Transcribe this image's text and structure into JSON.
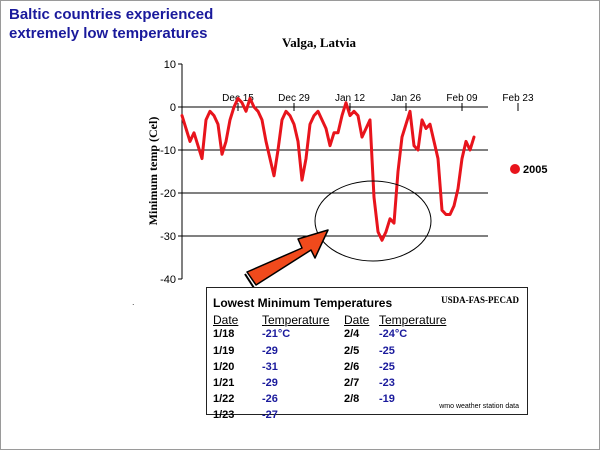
{
  "slide": {
    "title_line1": "Baltic countries experienced",
    "title_line2": "extremely low temperatures"
  },
  "colors": {
    "title": "#1a1a9c",
    "series": "#e8141c",
    "arrow": "#f04a1c",
    "table_values": "#1a1a9c"
  },
  "chart_data": {
    "type": "line",
    "title": "Valga, Latvia",
    "ylabel": "Minimum temp (Cel)",
    "xlabel": "",
    "ylim": [
      -40,
      10
    ],
    "yticks": [
      10,
      0,
      -10,
      -20,
      -30,
      -40
    ],
    "xticks": [
      "Dec 15",
      "Dec 29",
      "Jan 12",
      "Jan 26",
      "Feb 09",
      "Feb 23"
    ],
    "grid": "horizontal",
    "legend": "right",
    "series": [
      {
        "name": "2005",
        "x": [
          "Dec 01",
          "Dec 02",
          "Dec 03",
          "Dec 04",
          "Dec 05",
          "Dec 06",
          "Dec 07",
          "Dec 08",
          "Dec 09",
          "Dec 10",
          "Dec 11",
          "Dec 12",
          "Dec 13",
          "Dec 14",
          "Dec 15",
          "Dec 16",
          "Dec 17",
          "Dec 18",
          "Dec 19",
          "Dec 20",
          "Dec 21",
          "Dec 22",
          "Dec 23",
          "Dec 24",
          "Dec 25",
          "Dec 26",
          "Dec 27",
          "Dec 28",
          "Dec 29",
          "Dec 30",
          "Dec 31",
          "Jan 01",
          "Jan 02",
          "Jan 03",
          "Jan 04",
          "Jan 05",
          "Jan 06",
          "Jan 07",
          "Jan 08",
          "Jan 09",
          "Jan 10",
          "Jan 11",
          "Jan 12",
          "Jan 13",
          "Jan 14",
          "Jan 15",
          "Jan 16",
          "Jan 17",
          "Jan 18",
          "Jan 19",
          "Jan 20",
          "Jan 21",
          "Jan 22",
          "Jan 23",
          "Jan 24",
          "Jan 25",
          "Jan 26",
          "Jan 27",
          "Jan 28",
          "Jan 29",
          "Jan 30",
          "Jan 31",
          "Feb 01",
          "Feb 02",
          "Feb 03",
          "Feb 04",
          "Feb 05",
          "Feb 06",
          "Feb 07",
          "Feb 08",
          "Feb 09",
          "Feb 10",
          "Feb 11",
          "Feb 12"
        ],
        "values": [
          -2,
          -5,
          -8,
          -6,
          -9,
          -12,
          -3,
          -1,
          -2,
          -4,
          -11,
          -8,
          -3,
          0,
          2,
          1,
          -1,
          2,
          0,
          -1,
          -3,
          -8,
          -12,
          -16,
          -10,
          -3,
          -1,
          -2,
          -4,
          -8,
          -17,
          -12,
          -4,
          -2,
          -1,
          -3,
          -5,
          -9,
          -6,
          -6,
          -2,
          1,
          -2,
          -1,
          -2,
          -7,
          -5,
          -3,
          -21,
          -29,
          -31,
          -29,
          -26,
          -27,
          -15,
          -7,
          -4,
          -1,
          -9,
          -10,
          -3,
          -5,
          -4,
          -8,
          -12,
          -24,
          -25,
          -25,
          -23,
          -19,
          -12,
          -8,
          -10,
          -7
        ]
      }
    ],
    "annotations": [
      "circle around the Jan 18 – Feb 08 low period",
      "arrow pointing at the circled low period"
    ]
  },
  "table": {
    "title": "Lowest Minimum Temperatures",
    "source": "USDA-FAS-PECAD",
    "headers": {
      "date": "Date",
      "temperature": "Temperature"
    },
    "left": [
      {
        "date": "1/18",
        "temp": "-21°C"
      },
      {
        "date": "1/19",
        "temp": "-29"
      },
      {
        "date": "1/20",
        "temp": "-31"
      },
      {
        "date": "1/21",
        "temp": "-29"
      },
      {
        "date": "1/22",
        "temp": "-26"
      },
      {
        "date": "1/23",
        "temp": "-27"
      }
    ],
    "right": [
      {
        "date": "2/4",
        "temp": "-24°C"
      },
      {
        "date": "2/5",
        "temp": "-25"
      },
      {
        "date": "2/6",
        "temp": "-25"
      },
      {
        "date": "2/7",
        "temp": "-23"
      },
      {
        "date": "2/8",
        "temp": "-19"
      }
    ],
    "note": "wmo weather station data"
  }
}
